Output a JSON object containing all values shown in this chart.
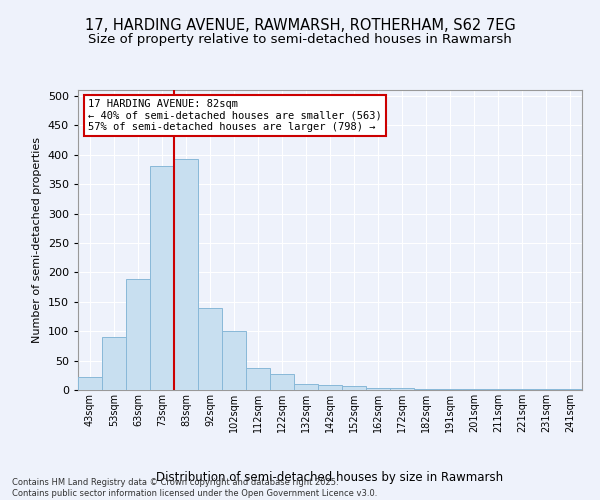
{
  "title_line1": "17, HARDING AVENUE, RAWMARSH, ROTHERHAM, S62 7EG",
  "title_line2": "Size of property relative to semi-detached houses in Rawmarsh",
  "xlabel": "Distribution of semi-detached houses by size in Rawmarsh",
  "ylabel": "Number of semi-detached properties",
  "footnote": "Contains HM Land Registry data © Crown copyright and database right 2025.\nContains public sector information licensed under the Open Government Licence v3.0.",
  "categories": [
    "43sqm",
    "53sqm",
    "63sqm",
    "73sqm",
    "83sqm",
    "92sqm",
    "102sqm",
    "112sqm",
    "122sqm",
    "132sqm",
    "142sqm",
    "152sqm",
    "162sqm",
    "172sqm",
    "182sqm",
    "191sqm",
    "201sqm",
    "211sqm",
    "221sqm",
    "231sqm",
    "241sqm"
  ],
  "bar_values": [
    22,
    90,
    188,
    380,
    393,
    140,
    100,
    37,
    28,
    11,
    8,
    6,
    4,
    3,
    2,
    1,
    1,
    1,
    1,
    1,
    1
  ],
  "bar_color": "#c8dff0",
  "bar_edge_color": "#88b8d8",
  "vline_x": 3.5,
  "vline_color": "#cc0000",
  "annotation_title": "17 HARDING AVENUE: 82sqm",
  "annotation_line1": "← 40% of semi-detached houses are smaller (563)",
  "annotation_line2": "57% of semi-detached houses are larger (798) →",
  "annotation_box_color": "#cc0000",
  "ylim": [
    0,
    510
  ],
  "yticks": [
    0,
    50,
    100,
    150,
    200,
    250,
    300,
    350,
    400,
    450,
    500
  ],
  "background_color": "#eef2fb",
  "grid_color": "#ffffff",
  "title_fontsize": 10.5,
  "subtitle_fontsize": 9.5,
  "annotation_fontsize": 7.5,
  "footnote_fontsize": 6.0
}
